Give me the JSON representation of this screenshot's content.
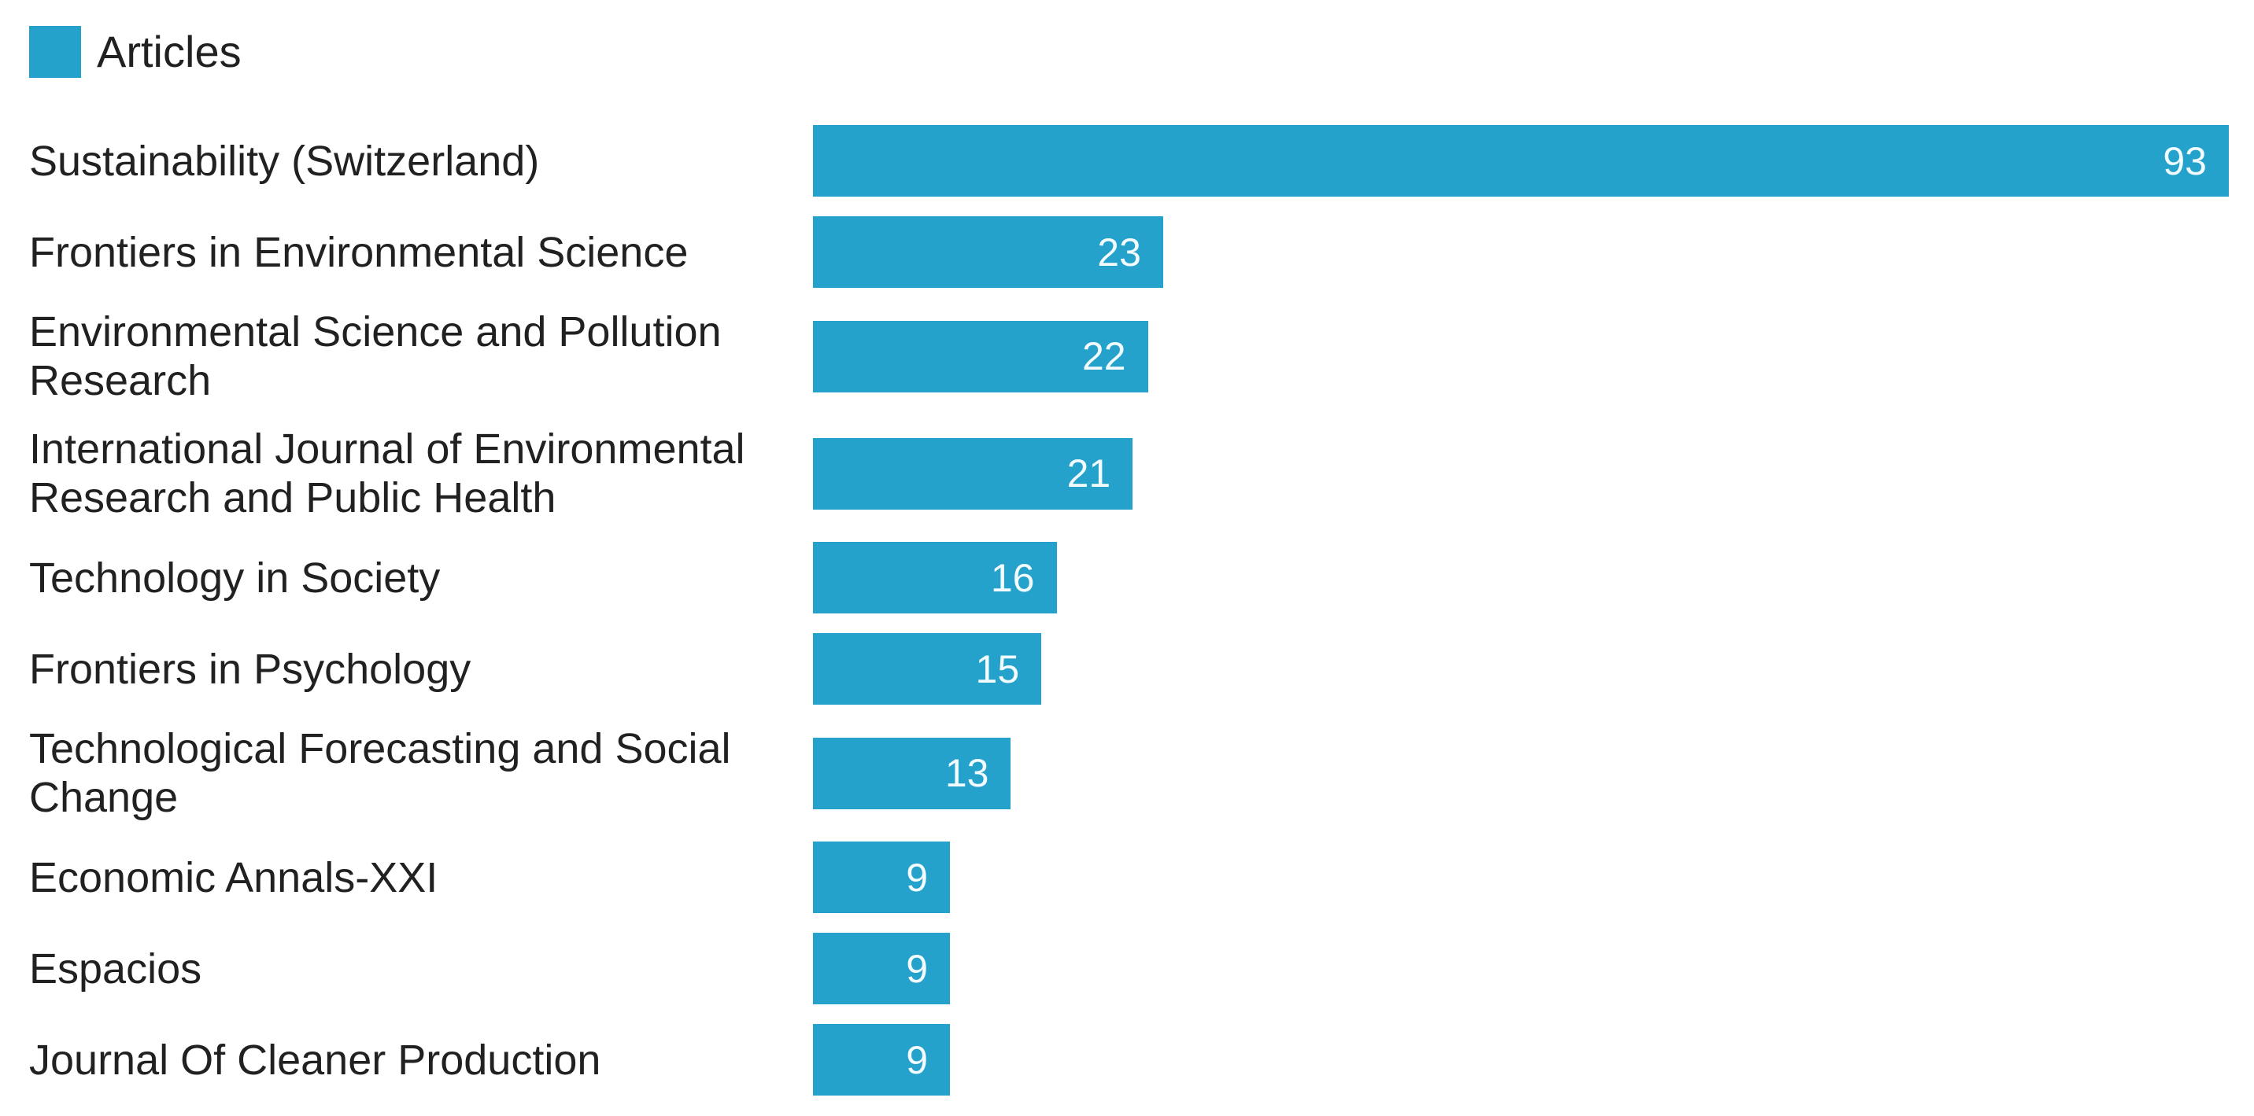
{
  "legend": {
    "label": "Articles",
    "color": "#24A2CC"
  },
  "chart_data": {
    "type": "bar",
    "orientation": "horizontal",
    "legend_entries": [
      "Articles"
    ],
    "legend_position": "top-left",
    "grid": false,
    "axes_shown": false,
    "value_labels": "inside-right",
    "bar_color": "#24A2CC",
    "value_label_color": "#F2FBFD",
    "label_color": "#212121",
    "xlim": [
      0,
      93
    ],
    "categories": [
      "Sustainability (Switzerland)",
      "Frontiers in Environmental Science",
      "Environmental Science and Pollution Research",
      "International Journal of Environmental Research and Public Health",
      "Technology in Society",
      "Frontiers in Psychology",
      "Technological Forecasting and Social Change",
      "Economic Annals-XXI",
      "Espacios",
      "Journal Of Cleaner Production"
    ],
    "values": [
      93,
      23,
      22,
      21,
      16,
      15,
      13,
      9,
      9,
      9
    ]
  }
}
